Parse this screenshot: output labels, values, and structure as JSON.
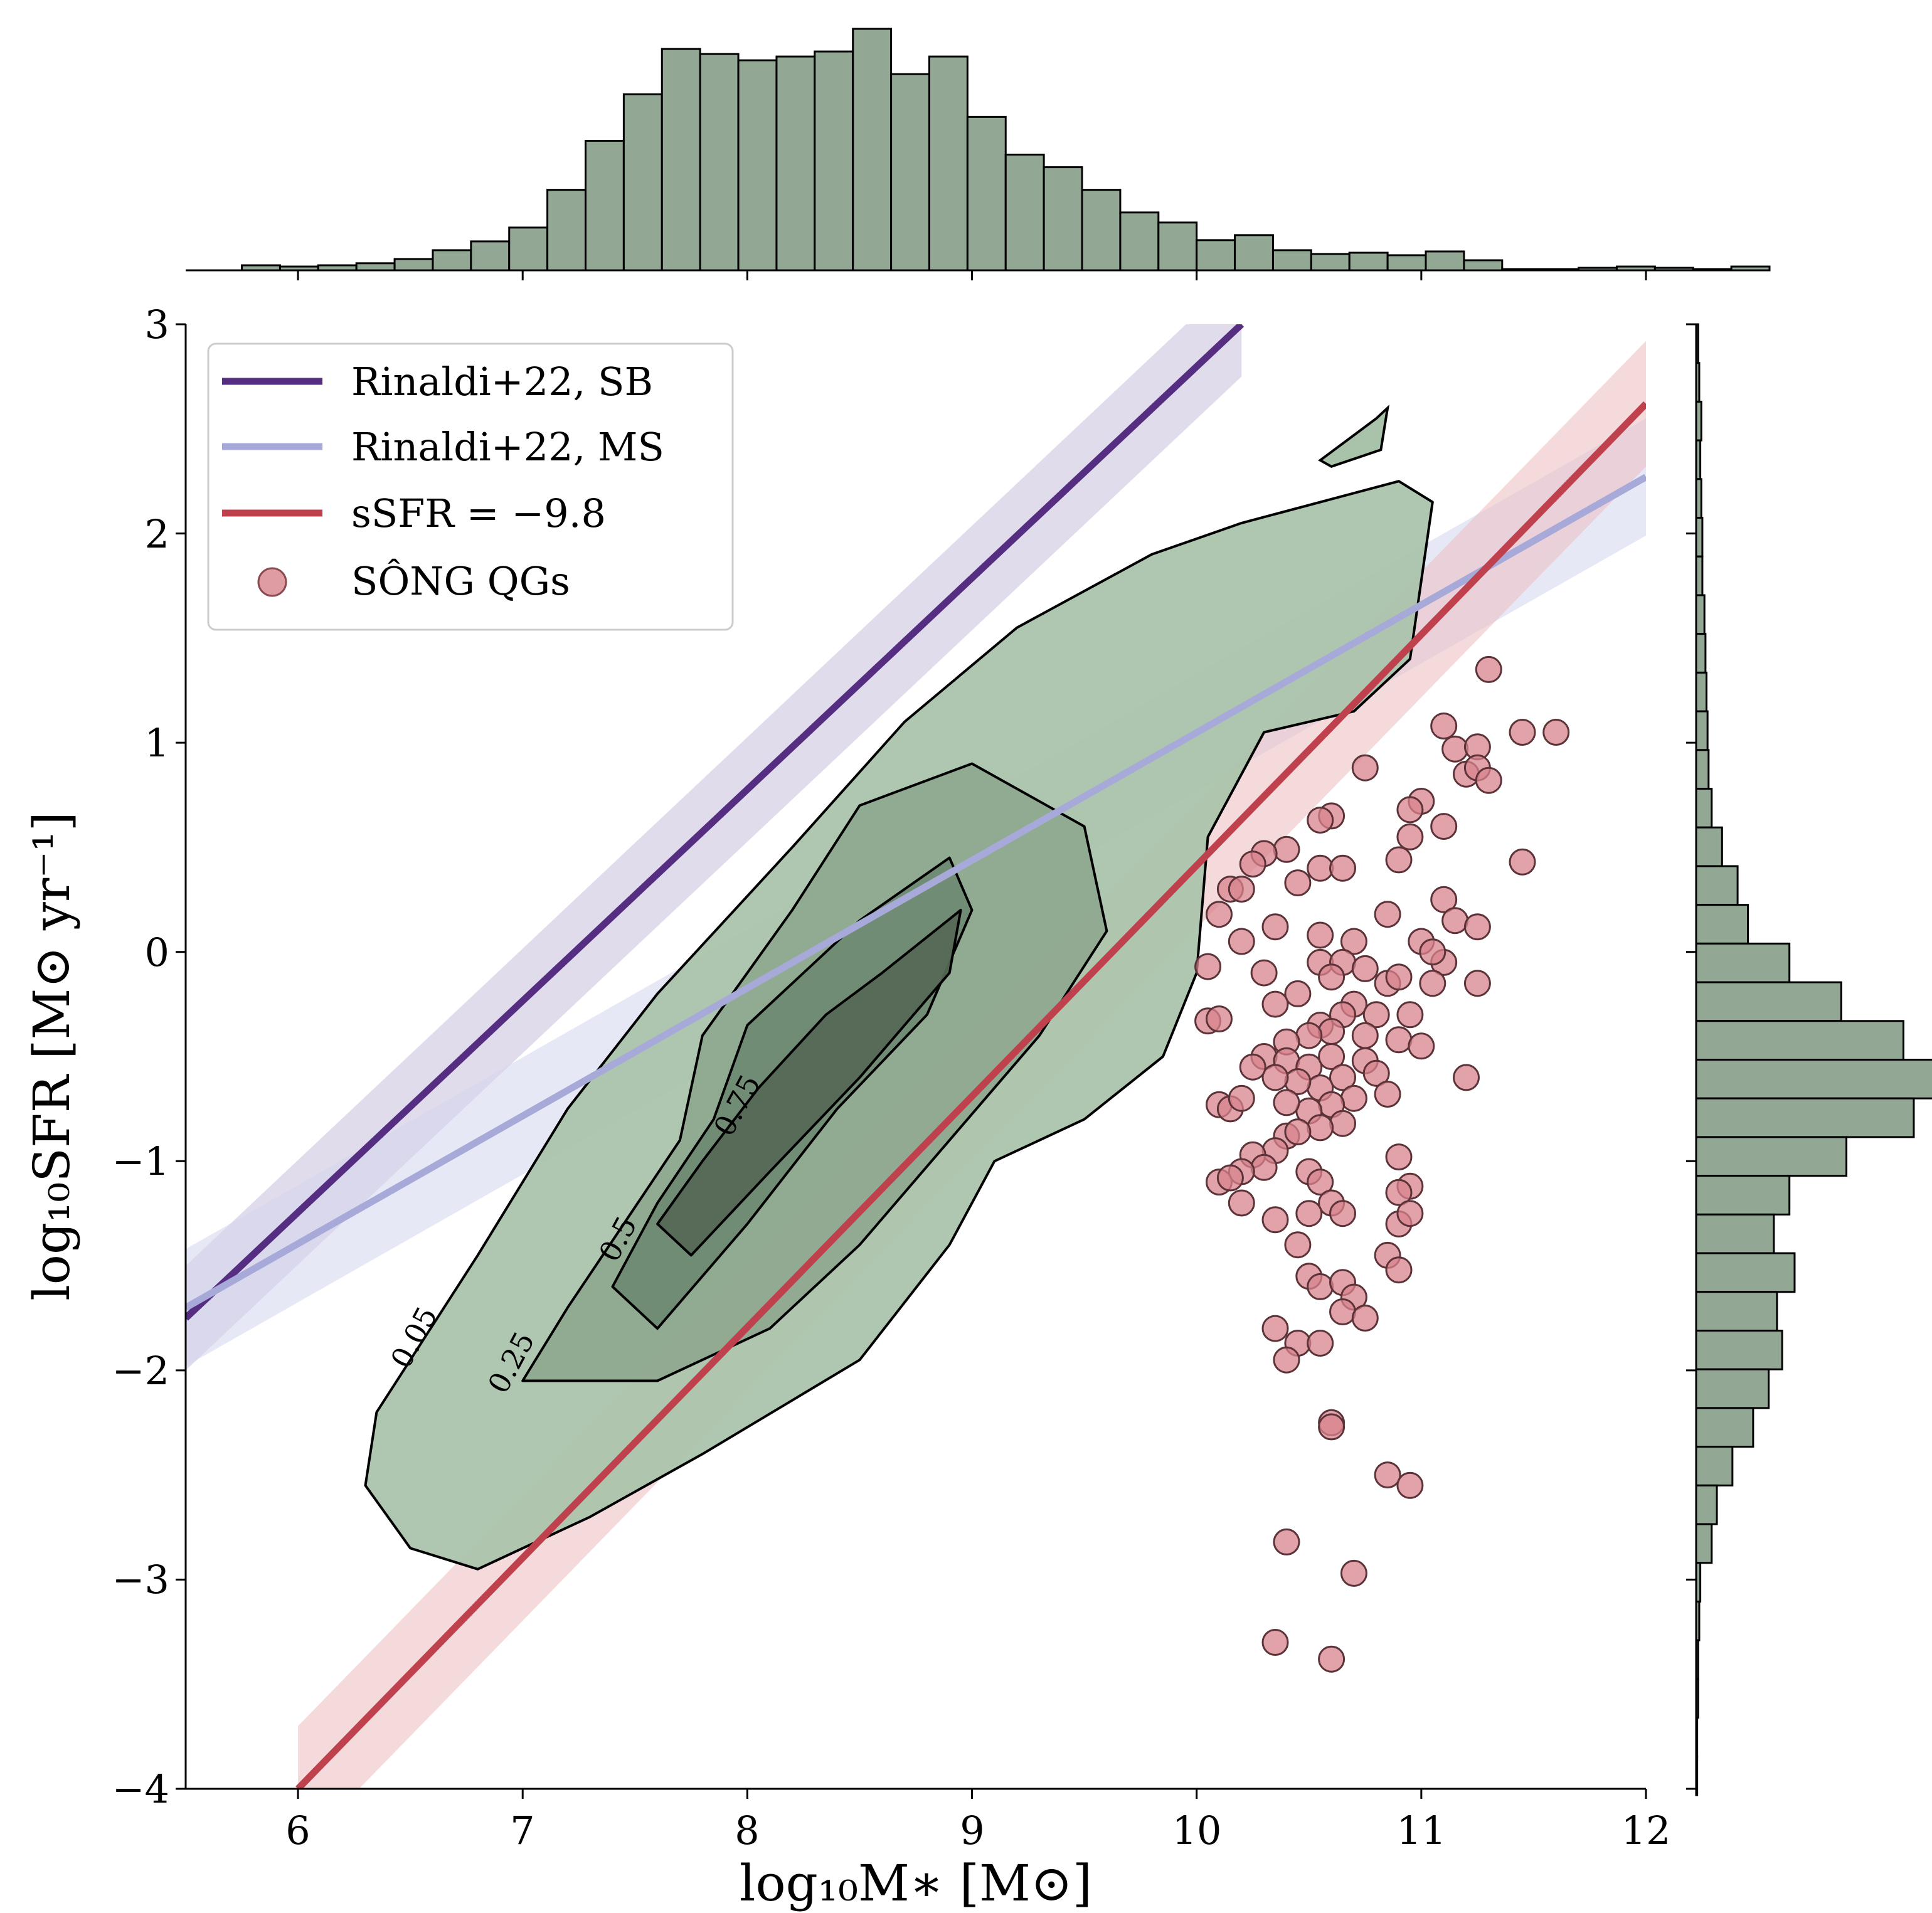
{
  "chart_data": {
    "type": "scatter",
    "xlabel": "log₁₀M∗ [M⊙]",
    "ylabel": "log₁₀SFR [M⊙ yr⁻¹]",
    "xlim": [
      5.5,
      12
    ],
    "ylim": [
      -4,
      3
    ],
    "xticks": [
      "6",
      "7",
      "8",
      "9",
      "10",
      "11",
      "12"
    ],
    "yticks": [
      "3",
      "2",
      "1",
      "0",
      "−1",
      "−2",
      "−3",
      "−4"
    ],
    "xtick_values": [
      6,
      7,
      8,
      9,
      10,
      11,
      12
    ],
    "ytick_values": [
      3,
      2,
      1,
      0,
      -1,
      -2,
      -3,
      -4
    ],
    "grid": false,
    "legend_position": "top-left",
    "legend": [
      {
        "label": "Rinaldi+22, SB",
        "kind": "line",
        "color": "#552e82"
      },
      {
        "label": "Rinaldi+22, MS",
        "kind": "line",
        "color": "#a7aad8"
      },
      {
        "label": "sSFR = −9.8",
        "kind": "line",
        "color": "#c0414e"
      },
      {
        "label": "SÔNG QGs",
        "kind": "marker",
        "color": "#d8838c"
      }
    ],
    "lines": [
      {
        "name": "Rinaldi+22, SB",
        "color": "#552e82",
        "band_color": "#c9bfdc",
        "x": [
          5.5,
          10.2
        ],
        "y": [
          -1.75,
          3.0
        ],
        "band": 0.25
      },
      {
        "name": "Rinaldi+22, MS",
        "color": "#a7aad8",
        "band_color": "#d3d6ee",
        "x": [
          5.5,
          12.0
        ],
        "y": [
          -1.7,
          2.27
        ],
        "band": 0.28
      },
      {
        "name": "sSFR = −9.8",
        "color": "#c0414e",
        "band_color": "#ecbcc0",
        "x": [
          6.0,
          12.0
        ],
        "y": [
          -4.0,
          2.62
        ],
        "band": 0.3
      }
    ],
    "contour_levels": [
      {
        "level": "0.05",
        "fill": "#a9c3aa",
        "path": [
          [
            6.3,
            -2.55
          ],
          [
            6.35,
            -2.2
          ],
          [
            6.8,
            -1.45
          ],
          [
            7.2,
            -0.75
          ],
          [
            7.6,
            -0.2
          ],
          [
            8.2,
            0.5
          ],
          [
            8.7,
            1.1
          ],
          [
            9.2,
            1.55
          ],
          [
            9.8,
            1.9
          ],
          [
            10.2,
            2.05
          ],
          [
            10.9,
            2.25
          ],
          [
            11.05,
            2.15
          ],
          [
            10.95,
            1.4
          ],
          [
            10.7,
            1.15
          ],
          [
            10.3,
            1.05
          ],
          [
            10.05,
            0.55
          ],
          [
            10.0,
            -0.1
          ],
          [
            9.85,
            -0.5
          ],
          [
            9.5,
            -0.8
          ],
          [
            9.1,
            -1.0
          ],
          [
            8.9,
            -1.4
          ],
          [
            8.5,
            -1.95
          ],
          [
            7.8,
            -2.4
          ],
          [
            7.3,
            -2.7
          ],
          [
            6.8,
            -2.95
          ],
          [
            6.5,
            -2.85
          ],
          [
            6.3,
            -2.55
          ]
        ]
      },
      {
        "level": "0.25",
        "fill": "#8fa88f",
        "path": [
          [
            7.0,
            -2.05
          ],
          [
            7.2,
            -1.7
          ],
          [
            7.7,
            -0.9
          ],
          [
            7.8,
            -0.4
          ],
          [
            8.2,
            0.2
          ],
          [
            8.5,
            0.7
          ],
          [
            9.0,
            0.9
          ],
          [
            9.5,
            0.6
          ],
          [
            9.6,
            0.1
          ],
          [
            9.3,
            -0.4
          ],
          [
            8.9,
            -0.9
          ],
          [
            8.5,
            -1.4
          ],
          [
            8.1,
            -1.8
          ],
          [
            7.6,
            -2.05
          ],
          [
            7.0,
            -2.05
          ]
        ]
      },
      {
        "level": "0.5",
        "fill": "#6f8a72",
        "path": [
          [
            7.4,
            -1.6
          ],
          [
            7.6,
            -1.2
          ],
          [
            7.85,
            -0.8
          ],
          [
            8.0,
            -0.35
          ],
          [
            8.5,
            0.15
          ],
          [
            8.9,
            0.45
          ],
          [
            9.0,
            0.2
          ],
          [
            8.8,
            -0.3
          ],
          [
            8.4,
            -0.75
          ],
          [
            8.0,
            -1.3
          ],
          [
            7.6,
            -1.8
          ],
          [
            7.4,
            -1.6
          ]
        ]
      },
      {
        "level": "0.75",
        "fill": "#566856",
        "path": [
          [
            7.6,
            -1.3
          ],
          [
            7.8,
            -1.0
          ],
          [
            8.05,
            -0.65
          ],
          [
            8.35,
            -0.3
          ],
          [
            8.6,
            -0.1
          ],
          [
            8.95,
            0.2
          ],
          [
            8.9,
            -0.1
          ],
          [
            8.5,
            -0.6
          ],
          [
            8.1,
            -1.05
          ],
          [
            7.75,
            -1.45
          ],
          [
            7.6,
            -1.3
          ]
        ]
      }
    ],
    "contour_labels": [
      "0.05",
      "0.25",
      "0.5",
      "0.75"
    ],
    "qg_points": [
      [
        11.3,
        1.35
      ],
      [
        11.6,
        1.05
      ],
      [
        11.45,
        1.05
      ],
      [
        11.1,
        1.08
      ],
      [
        11.15,
        0.97
      ],
      [
        11.25,
        0.98
      ],
      [
        11.2,
        0.85
      ],
      [
        11.25,
        0.88
      ],
      [
        11.3,
        0.82
      ],
      [
        10.75,
        0.88
      ],
      [
        11.0,
        0.72
      ],
      [
        10.95,
        0.68
      ],
      [
        10.95,
        0.55
      ],
      [
        11.1,
        0.6
      ],
      [
        11.45,
        0.43
      ],
      [
        10.9,
        0.44
      ],
      [
        10.6,
        0.65
      ],
      [
        10.55,
        0.63
      ],
      [
        10.4,
        0.49
      ],
      [
        10.3,
        0.47
      ],
      [
        10.25,
        0.42
      ],
      [
        10.55,
        0.4
      ],
      [
        10.65,
        0.4
      ],
      [
        10.45,
        0.33
      ],
      [
        10.15,
        0.3
      ],
      [
        10.2,
        0.3
      ],
      [
        11.1,
        0.25
      ],
      [
        10.85,
        0.18
      ],
      [
        11.15,
        0.15
      ],
      [
        11.25,
        0.12
      ],
      [
        10.1,
        0.18
      ],
      [
        10.35,
        0.12
      ],
      [
        10.55,
        0.08
      ],
      [
        10.7,
        0.05
      ],
      [
        10.2,
        0.05
      ],
      [
        11.0,
        0.05
      ],
      [
        11.1,
        -0.05
      ],
      [
        11.05,
        0.0
      ],
      [
        10.55,
        -0.05
      ],
      [
        10.65,
        -0.05
      ],
      [
        10.05,
        -0.07
      ],
      [
        10.3,
        -0.1
      ],
      [
        10.75,
        -0.08
      ],
      [
        10.6,
        -0.12
      ],
      [
        10.85,
        -0.15
      ],
      [
        10.9,
        -0.12
      ],
      [
        11.05,
        -0.15
      ],
      [
        11.25,
        -0.15
      ],
      [
        10.45,
        -0.2
      ],
      [
        10.35,
        -0.25
      ],
      [
        10.7,
        -0.25
      ],
      [
        10.8,
        -0.3
      ],
      [
        10.95,
        -0.3
      ],
      [
        10.65,
        -0.3
      ],
      [
        10.55,
        -0.35
      ],
      [
        10.6,
        -0.38
      ],
      [
        10.5,
        -0.4
      ],
      [
        10.4,
        -0.43
      ],
      [
        10.75,
        -0.4
      ],
      [
        10.9,
        -0.42
      ],
      [
        11.0,
        -0.45
      ],
      [
        10.05,
        -0.33
      ],
      [
        10.1,
        -0.32
      ],
      [
        10.3,
        -0.5
      ],
      [
        10.4,
        -0.52
      ],
      [
        10.5,
        -0.55
      ],
      [
        10.6,
        -0.5
      ],
      [
        10.75,
        -0.52
      ],
      [
        10.8,
        -0.58
      ],
      [
        10.65,
        -0.6
      ],
      [
        10.55,
        -0.65
      ],
      [
        10.45,
        -0.62
      ],
      [
        10.35,
        -0.6
      ],
      [
        10.25,
        -0.55
      ],
      [
        11.2,
        -0.6
      ],
      [
        10.7,
        -0.7
      ],
      [
        10.6,
        -0.73
      ],
      [
        10.5,
        -0.76
      ],
      [
        10.4,
        -0.72
      ],
      [
        10.85,
        -0.68
      ],
      [
        10.1,
        -0.73
      ],
      [
        10.15,
        -0.75
      ],
      [
        10.2,
        -0.7
      ],
      [
        10.65,
        -0.82
      ],
      [
        10.55,
        -0.84
      ],
      [
        10.4,
        -0.88
      ],
      [
        10.35,
        -0.95
      ],
      [
        10.25,
        -0.97
      ],
      [
        10.45,
        -0.86
      ],
      [
        10.9,
        -0.98
      ],
      [
        10.3,
        -1.03
      ],
      [
        10.2,
        -1.05
      ],
      [
        10.5,
        -1.05
      ],
      [
        10.55,
        -1.1
      ],
      [
        10.1,
        -1.1
      ],
      [
        10.15,
        -1.08
      ],
      [
        10.95,
        -1.12
      ],
      [
        10.9,
        -1.15
      ],
      [
        10.6,
        -1.2
      ],
      [
        10.5,
        -1.25
      ],
      [
        10.35,
        -1.28
      ],
      [
        10.65,
        -1.25
      ],
      [
        10.9,
        -1.3
      ],
      [
        10.95,
        -1.25
      ],
      [
        10.2,
        -1.2
      ],
      [
        10.45,
        -1.4
      ],
      [
        10.85,
        -1.45
      ],
      [
        10.9,
        -1.52
      ],
      [
        10.5,
        -1.55
      ],
      [
        10.55,
        -1.6
      ],
      [
        10.65,
        -1.58
      ],
      [
        10.7,
        -1.65
      ],
      [
        10.65,
        -1.72
      ],
      [
        10.75,
        -1.75
      ],
      [
        10.35,
        -1.8
      ],
      [
        10.45,
        -1.87
      ],
      [
        10.55,
        -1.87
      ],
      [
        10.4,
        -1.95
      ],
      [
        10.6,
        -2.25
      ],
      [
        10.6,
        -2.27
      ],
      [
        10.85,
        -2.5
      ],
      [
        10.95,
        -2.55
      ],
      [
        10.4,
        -2.82
      ],
      [
        10.7,
        -2.97
      ],
      [
        10.35,
        -3.3
      ],
      [
        10.6,
        -3.38
      ]
    ],
    "marginal_x": {
      "color": "#92a794",
      "bin_start": 5.75,
      "bin_width": 0.17,
      "counts": [
        2,
        1.5,
        2,
        2.8,
        4.5,
        8,
        11.5,
        17,
        32,
        51.5,
        70,
        88,
        86,
        83.5,
        85,
        87,
        96,
        78,
        85,
        61,
        46,
        41,
        32,
        23,
        19,
        12,
        14,
        8,
        6.5,
        7,
        6,
        7.5,
        4,
        0.5,
        0.5,
        1,
        1.5,
        1,
        0.5,
        1.5
      ]
    },
    "marginal_y": {
      "color": "#92a794",
      "bin_top": 3.0,
      "bin_height": 0.185,
      "counts": [
        0.2,
        0.3,
        0.5,
        0.4,
        0.5,
        0.6,
        0.6,
        0.8,
        0.9,
        1.0,
        1.1,
        1.2,
        1.5,
        2.5,
        4.0,
        5.0,
        9.0,
        14.0,
        20.0,
        23.0,
        21.0,
        14.5,
        9.0,
        7.5,
        9.5,
        7.8,
        8.3,
        7.0,
        5.5,
        3.5,
        2.0,
        1.5,
        0.4,
        0.3,
        0.2,
        0.2,
        0.1,
        0.1
      ]
    }
  }
}
